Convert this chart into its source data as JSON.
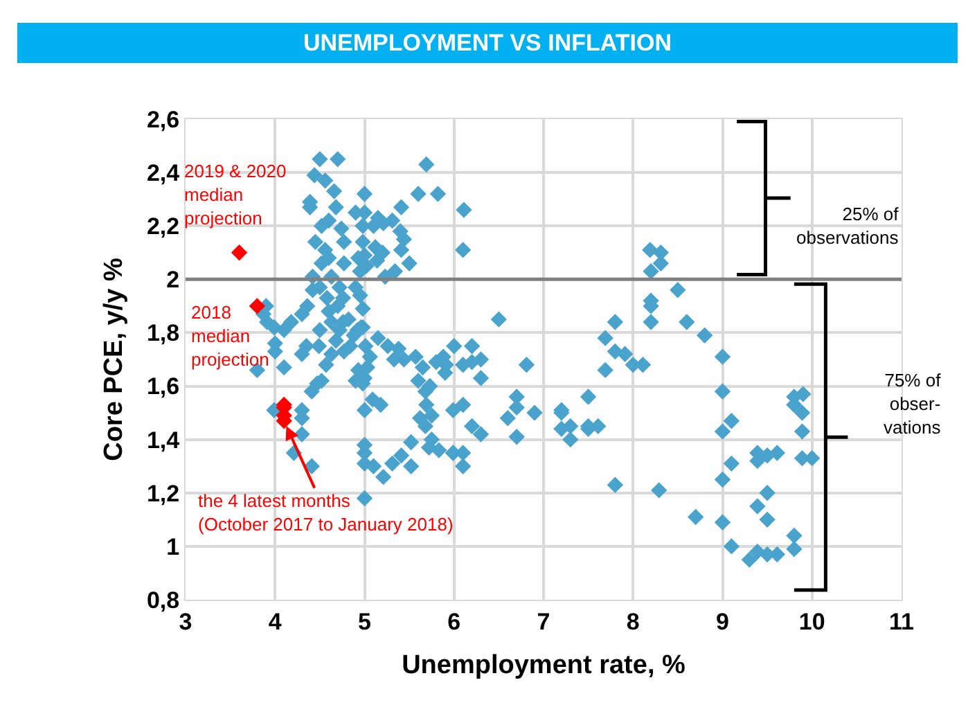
{
  "chart_data": {
    "type": "scatter",
    "title": "UNEMPLOYMENT VS INFLATION",
    "xlabel": "Unemployment rate, %",
    "ylabel": "Core PCE, y/y %",
    "xlim": [
      3,
      11
    ],
    "xticks": [
      3,
      4,
      5,
      6,
      7,
      8,
      9,
      10,
      11
    ],
    "ylim": [
      0.8,
      2.6
    ],
    "yticks": [
      {
        "value": 0.8,
        "label": "0,8"
      },
      1,
      {
        "value": 1.2,
        "label": "1,2"
      },
      {
        "value": 1.4,
        "label": "1,4"
      },
      {
        "value": 1.6,
        "label": "1,6"
      },
      {
        "value": 1.8,
        "label": "1,8"
      },
      2,
      {
        "value": 2.2,
        "label": "2,2"
      },
      {
        "value": 2.4,
        "label": "2,4"
      },
      {
        "value": 2.6,
        "label": "2,6"
      }
    ],
    "grid": true,
    "marker": "diamond",
    "ref_lines": [
      {
        "axis": "y",
        "value": 2,
        "label": null,
        "color": "#808080"
      }
    ],
    "series": [
      {
        "color": "#4aa3cc",
        "x": [
          4.5,
          4.7,
          4.44,
          4.56,
          4.66,
          4.39,
          4.39,
          5.0,
          5.0,
          4.68,
          4.9,
          4.98,
          5.1,
          4.52,
          4.6,
          4.74,
          4.77,
          4.45,
          4.56,
          4.6,
          4.52,
          4.98,
          5.0,
          5.02,
          4.93,
          4.95,
          4.77,
          4.63,
          4.42,
          4.42,
          4.5,
          4.72,
          4.76,
          4.9,
          4.95,
          4.58,
          4.6,
          4.7,
          4.98,
          4.76,
          4.72,
          4.82,
          4.63,
          4.98,
          4.92,
          4.36,
          5.69,
          5.6,
          5.82,
          5.41,
          5.15,
          5.21,
          5.4,
          5.44,
          5.41,
          5.5,
          5.34,
          5.23,
          5.14,
          5.2,
          6.11,
          6.1,
          5.31,
          5.12,
          3.87,
          3.91,
          3.99,
          4.18,
          4.1,
          4.3,
          4.0,
          4.0,
          4.1,
          4.35,
          4.3,
          4.5,
          4.49,
          4.68,
          4.63,
          4.57,
          4.77,
          4.84,
          4.88,
          4.96,
          5.01,
          4.93,
          5.03,
          4.47,
          4.98,
          5.15,
          5.26,
          5.38,
          5.44,
          5.33,
          5.06,
          3.8,
          3.9,
          5.09,
          5.0,
          5.18,
          5.6,
          5.68,
          5.73,
          8.19,
          8.31,
          8.31,
          8.2,
          8.5,
          8.2,
          8.2,
          8.6,
          8.2,
          7.8,
          8.8,
          7.69,
          7.8,
          7.91,
          7.69,
          8.0,
          8.11,
          6.5,
          6.0,
          6.2,
          6.1,
          6.2,
          6.3,
          6.3,
          6.81,
          5.88,
          5.91,
          5.9,
          6.7,
          6.7,
          6.6,
          6.9,
          6.7,
          5.99,
          6.1,
          6.2,
          6.3,
          7.2,
          7.2,
          7.2,
          7.3,
          7.3,
          7.5,
          7.5,
          7.5,
          7.61,
          5.99,
          6.1,
          6.1,
          7.8,
          8.29,
          8.7,
          9.0,
          9.0,
          9.0,
          9.1,
          9.1,
          9.0,
          9.0,
          9.1,
          9.3,
          9.39,
          9.5,
          9.61,
          9.8,
          9.8,
          9.5,
          9.39,
          9.5,
          9.39,
          9.39,
          9.5,
          9.61,
          9.89,
          10.0,
          9.8,
          9.9,
          9.8,
          9.89,
          9.89,
          3.99,
          4.3,
          4.3,
          4.3,
          4.21,
          4.41,
          4.41,
          4.52,
          5.0,
          5.0,
          5.0,
          5.0,
          5.1,
          5.21,
          5.31,
          5.41,
          5.52,
          5.52,
          5.62,
          5.69,
          5.72,
          5.83,
          5.68,
          5.75,
          5.75,
          5.0,
          4.9,
          5.99,
          5.57,
          5.65,
          5.8
        ],
        "values": [
          2.45,
          2.45,
          2.39,
          2.37,
          2.33,
          2.29,
          2.27,
          2.32,
          2.25,
          2.27,
          2.25,
          2.2,
          2.2,
          2.2,
          2.22,
          2.19,
          2.14,
          2.14,
          2.11,
          2.08,
          2.06,
          2.14,
          2.09,
          2.05,
          2.08,
          2.03,
          2.06,
          2.01,
          2.01,
          1.96,
          1.97,
          1.97,
          1.93,
          1.97,
          1.94,
          1.93,
          1.88,
          1.9,
          1.89,
          1.84,
          1.81,
          1.85,
          1.84,
          1.82,
          1.81,
          1.9,
          2.43,
          2.32,
          2.32,
          2.27,
          2.23,
          2.21,
          2.18,
          2.15,
          2.11,
          2.06,
          2.03,
          2.01,
          2.07,
          2.1,
          2.26,
          2.11,
          2.22,
          2.12,
          1.87,
          1.84,
          1.82,
          1.84,
          1.81,
          1.87,
          1.76,
          1.73,
          1.67,
          1.75,
          1.72,
          1.81,
          1.75,
          1.77,
          1.72,
          1.68,
          1.73,
          1.75,
          1.79,
          1.82,
          1.75,
          1.66,
          1.67,
          1.61,
          1.61,
          1.78,
          1.75,
          1.74,
          1.7,
          1.7,
          1.71,
          1.66,
          1.9,
          1.55,
          1.51,
          1.53,
          1.62,
          1.58,
          1.6,
          2.11,
          2.1,
          2.06,
          2.03,
          1.96,
          1.92,
          1.9,
          1.84,
          1.84,
          1.84,
          1.79,
          1.78,
          1.73,
          1.72,
          1.66,
          1.68,
          1.68,
          1.85,
          1.75,
          1.75,
          1.68,
          1.69,
          1.7,
          1.63,
          1.68,
          1.71,
          1.68,
          1.65,
          1.56,
          1.52,
          1.48,
          1.5,
          1.41,
          1.51,
          1.53,
          1.45,
          1.42,
          1.51,
          1.5,
          1.44,
          1.45,
          1.4,
          1.56,
          1.45,
          1.44,
          1.45,
          1.35,
          1.35,
          1.3,
          1.23,
          1.21,
          1.11,
          1.71,
          1.58,
          1.43,
          1.47,
          1.31,
          1.25,
          1.09,
          1.0,
          0.95,
          0.98,
          0.97,
          0.97,
          0.99,
          1.04,
          1.1,
          1.15,
          1.2,
          1.35,
          1.32,
          1.34,
          1.35,
          1.33,
          1.33,
          1.56,
          1.57,
          1.53,
          1.5,
          1.43,
          1.51,
          1.51,
          1.48,
          1.42,
          1.35,
          1.3,
          1.58,
          1.62,
          1.38,
          1.35,
          1.31,
          1.18,
          1.3,
          1.26,
          1.31,
          1.34,
          1.39,
          1.3,
          1.48,
          1.53,
          1.37,
          1.36,
          1.45,
          1.49,
          1.4,
          1.63,
          1.62,
          1.35,
          1.71,
          1.67,
          1.69
        ]
      },
      {
        "color": "#ff0000",
        "x": [
          3.6,
          3.8
        ],
        "values": [
          2.1,
          1.9
        ]
      },
      {
        "color": "#ff0000",
        "x": [
          4.1,
          4.1,
          4.1,
          4.1
        ],
        "values": [
          1.53,
          1.52,
          1.49,
          1.47
        ]
      }
    ],
    "annotations": [
      {
        "text": "2019 & 2020\nmedian\nprojection",
        "x": 3.6,
        "y": 2.1
      },
      {
        "text": "2018\nmedian\nprojection",
        "x": 3.8,
        "y": 1.9
      },
      {
        "text": "the 4 latest months\n(October 2017 to January 2018)",
        "x": 4.1,
        "y": 1.47
      },
      "25% of\nobservations",
      "75% of\nobser-\nvations"
    ]
  }
}
